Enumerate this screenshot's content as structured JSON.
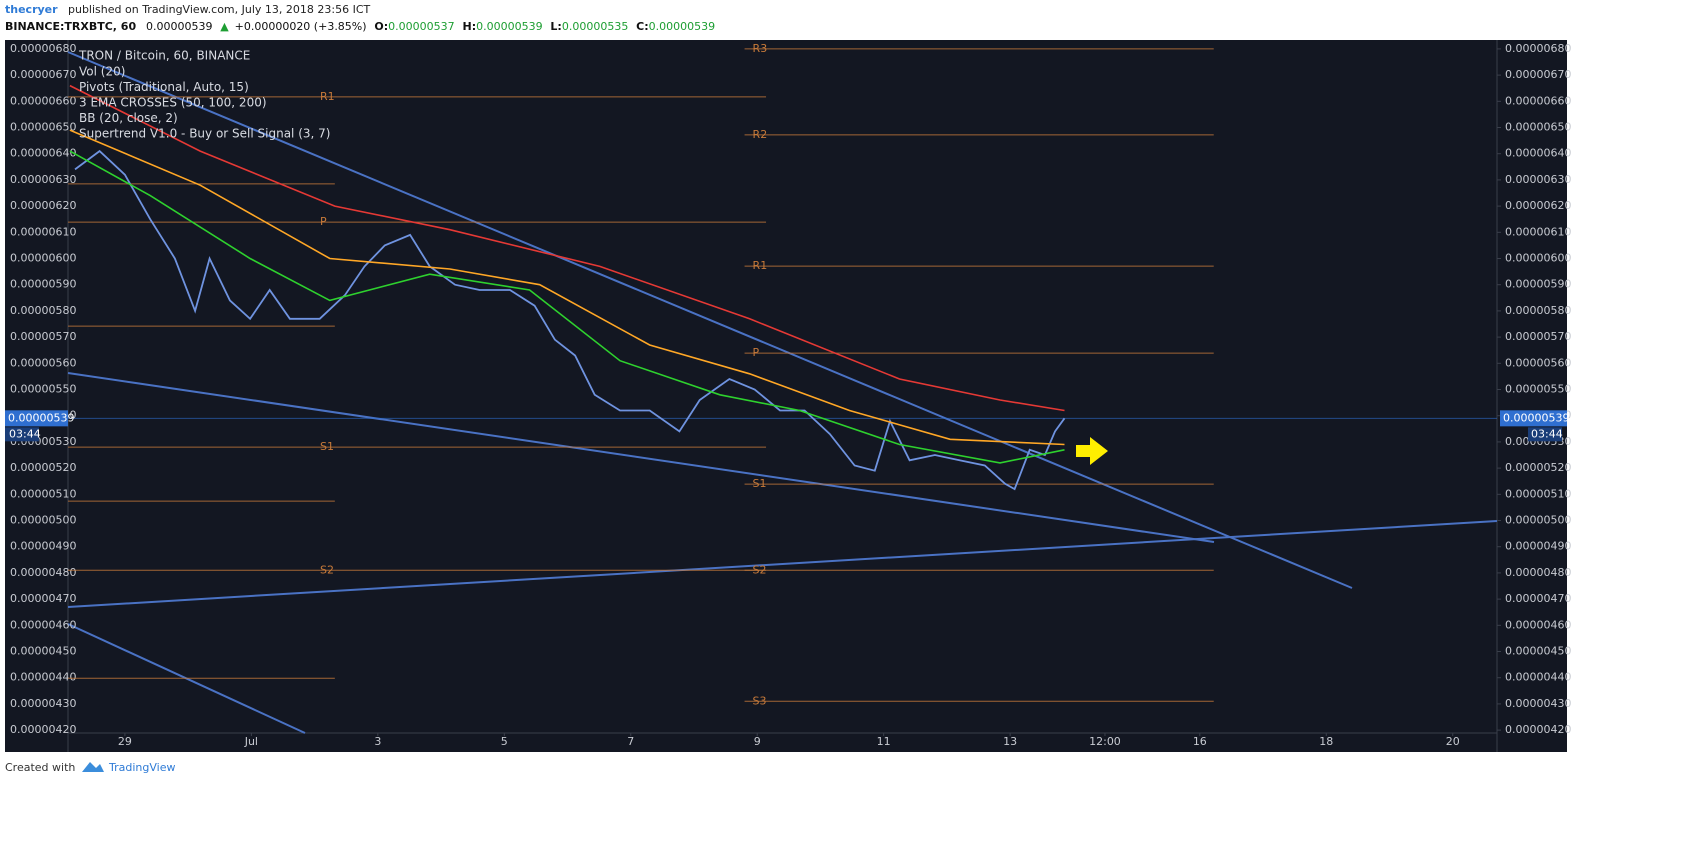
{
  "header": {
    "author": "thecryer",
    "published": "published on TradingView.com, July 13, 2018 23:56 ICT",
    "symbol": "BINANCE:TRXBTC, 60",
    "price": "0.00000539",
    "change_arrow": "▲",
    "change": "+0.00000020 (+3.85%)",
    "ohlc": [
      {
        "label": "O:",
        "value": "0.00000537"
      },
      {
        "label": "H:",
        "value": "0.00000539"
      },
      {
        "label": "L:",
        "value": "0.00000535"
      },
      {
        "label": "C:",
        "value": "0.00000539"
      }
    ]
  },
  "chart_data": {
    "type": "line",
    "legend_lines": [
      "Vol (20)",
      "Pivots (Traditional, Auto, 15)",
      "3 EMA CROSSES (50, 100, 200)",
      "BB (20, close, 2)",
      "Supertrend V1.0 - Buy or Sell Signal (3, 7)"
    ],
    "series": [
      {
        "name": "TRON / Bitcoin, 60, BINANCE",
        "color": "#6f93e0",
        "x": [
          28.21,
          28.6,
          29,
          29.4,
          29.79,
          30.11,
          30.34,
          30.66,
          30.98,
          31.29,
          31.61,
          32.08,
          32.48,
          32.79,
          33.11,
          33.51,
          33.82,
          34.22,
          34.61,
          35.09,
          35.48,
          35.8,
          36.12,
          36.43,
          36.83,
          37.3,
          37.77,
          38.09,
          38.56,
          38.96,
          39.36,
          39.75,
          40.15,
          40.54,
          40.86,
          41.1,
          41.41,
          41.81,
          42.2,
          42.6,
          42.92,
          43.07,
          43.31,
          43.55,
          43.71,
          43.86
        ],
        "values": [
          6.34e-06,
          6.41e-06,
          6.32e-06,
          6.15e-06,
          6e-06,
          5.8e-06,
          6e-06,
          5.84e-06,
          5.77e-06,
          5.88e-06,
          5.77e-06,
          5.77e-06,
          5.86e-06,
          5.97e-06,
          6.05e-06,
          6.09e-06,
          5.97e-06,
          5.9e-06,
          5.88e-06,
          5.88e-06,
          5.82e-06,
          5.69e-06,
          5.63e-06,
          5.48e-06,
          5.42e-06,
          5.42e-06,
          5.34e-06,
          5.46e-06,
          5.54e-06,
          5.5e-06,
          5.42e-06,
          5.42e-06,
          5.33e-06,
          5.21e-06,
          5.19e-06,
          5.38e-06,
          5.23e-06,
          5.25e-06,
          5.23e-06,
          5.21e-06,
          5.14e-06,
          5.12e-06,
          5.27e-06,
          5.25e-06,
          5.34e-06,
          5.39e-06
        ]
      },
      {
        "color": "#e53935",
        "x": [
          28.13,
          30.19,
          32.32,
          34.14,
          36.51,
          38.88,
          41.25,
          42.84,
          43.86
        ],
        "values": [
          6.66e-06,
          6.41e-06,
          6.2e-06,
          6.11e-06,
          5.97e-06,
          5.77e-06,
          5.54e-06,
          5.46e-06,
          5.42e-06
        ]
      },
      {
        "color": "#ffa726",
        "x": [
          28.13,
          30.19,
          32.24,
          34.14,
          35.56,
          37.3,
          38.88,
          40.46,
          42.05,
          43.86
        ],
        "values": [
          6.49e-06,
          6.28e-06,
          6e-06,
          5.96e-06,
          5.9e-06,
          5.67e-06,
          5.56e-06,
          5.42e-06,
          5.31e-06,
          5.29e-06
        ]
      },
      {
        "color": "#2ed12e",
        "x": [
          28.13,
          29.4,
          30.98,
          32.24,
          33.82,
          35.4,
          36.83,
          38.41,
          39.67,
          41.25,
          42.84,
          43.86
        ],
        "values": [
          6.41e-06,
          6.24e-06,
          6e-06,
          5.84e-06,
          5.94e-06,
          5.88e-06,
          5.61e-06,
          5.48e-06,
          5.42e-06,
          5.29e-06,
          5.22e-06,
          5.27e-06
        ]
      }
    ],
    "pivots": [
      {
        "label": "R1",
        "value": 6.617e-06,
        "from": 28.1,
        "to": 39.14
      },
      {
        "label": "P",
        "value": 6.139e-06,
        "from": 28.1,
        "to": 39.14
      },
      {
        "label": "S1",
        "value": 5.28e-06,
        "from": 28.1,
        "to": 39.14
      },
      {
        "label": "S2",
        "value": 4.81e-06,
        "from": 28.1,
        "to": 39.14
      },
      {
        "value": 6.285e-06,
        "from": 28.1,
        "to": 32.32
      },
      {
        "value": 5.742e-06,
        "from": 28.1,
        "to": 32.32
      },
      {
        "value": 5.074e-06,
        "from": 28.1,
        "to": 32.32
      },
      {
        "value": 4.398e-06,
        "from": 28.1,
        "to": 32.32
      },
      {
        "label": "R3",
        "value": 6.8e-06,
        "from": 38.8,
        "to": 46.22
      },
      {
        "label": "R2",
        "value": 6.472e-06,
        "from": 38.8,
        "to": 46.22
      },
      {
        "label": "R1",
        "value": 5.971e-06,
        "from": 38.8,
        "to": 46.22
      },
      {
        "label": "P",
        "value": 5.639e-06,
        "from": 38.8,
        "to": 46.22
      },
      {
        "label": "S1",
        "value": 5.139e-06,
        "from": 38.8,
        "to": 46.22
      },
      {
        "label": "S2",
        "value": 4.81e-06,
        "from": 38.8,
        "to": 46.22
      },
      {
        "label": "S3",
        "value": 4.31e-06,
        "from": 38.8,
        "to": 46.22
      }
    ],
    "last_price": {
      "value": 5.39e-06,
      "label": "0.00000539"
    },
    "countdown": "03:44",
    "pivot_color": "#c77a3a",
    "grid": false,
    "xlim": [
      28.1,
      50.7
    ],
    "xticks": [
      {
        "value": 29,
        "label": "29"
      },
      {
        "value": 31,
        "label": "Jul"
      },
      {
        "value": 33,
        "label": "3"
      },
      {
        "value": 35,
        "label": "5"
      },
      {
        "value": 37,
        "label": "7"
      },
      {
        "value": 39,
        "label": "9"
      },
      {
        "value": 41,
        "label": "11"
      },
      {
        "value": 43,
        "label": "13"
      },
      {
        "value": 44.5,
        "label": "12:00"
      },
      {
        "value": 46,
        "label": "16"
      },
      {
        "value": 48,
        "label": "18"
      },
      {
        "value": 50,
        "label": "20"
      }
    ],
    "ylim": [
      4.189e-06,
      6.834e-06
    ],
    "yticks": [
      {
        "value": 4.2e-06,
        "label": "0.00000420"
      },
      {
        "value": 4.3e-06,
        "label": "0.00000430"
      },
      {
        "value": 4.4e-06,
        "label": "0.00000440"
      },
      {
        "value": 4.5e-06,
        "label": "0.00000450"
      },
      {
        "value": 4.6e-06,
        "label": "0.00000460"
      },
      {
        "value": 4.7e-06,
        "label": "0.00000470"
      },
      {
        "value": 4.8e-06,
        "label": "0.00000480"
      },
      {
        "value": 4.9e-06,
        "label": "0.00000490"
      },
      {
        "value": 5e-06,
        "label": "0.00000500"
      },
      {
        "value": 5.1e-06,
        "label": "0.00000510"
      },
      {
        "value": 5.2e-06,
        "label": "0.00000520"
      },
      {
        "value": 5.3e-06,
        "label": "0.00000530"
      },
      {
        "value": 5.4e-06,
        "label": "0.00000540"
      },
      {
        "value": 5.5e-06,
        "label": "0.00000550"
      },
      {
        "value": 5.6e-06,
        "label": "0.00000560"
      },
      {
        "value": 5.7e-06,
        "label": "0.00000570"
      },
      {
        "value": 5.8e-06,
        "label": "0.00000580"
      },
      {
        "value": 5.9e-06,
        "label": "0.00000590"
      },
      {
        "value": 6e-06,
        "label": "0.00000600"
      },
      {
        "value": 6.1e-06,
        "label": "0.00000610"
      },
      {
        "value": 6.2e-06,
        "label": "0.00000620"
      },
      {
        "value": 6.3e-06,
        "label": "0.00000630"
      },
      {
        "value": 6.4e-06,
        "label": "0.00000640"
      },
      {
        "value": 6.5e-06,
        "label": "0.00000650"
      },
      {
        "value": 6.6e-06,
        "label": "0.00000660"
      },
      {
        "value": 6.7e-06,
        "label": "0.00000670"
      },
      {
        "value": 6.8e-06,
        "label": "0.00000680"
      }
    ]
  },
  "footer": {
    "created": "Created with",
    "brand": "TradingView"
  }
}
